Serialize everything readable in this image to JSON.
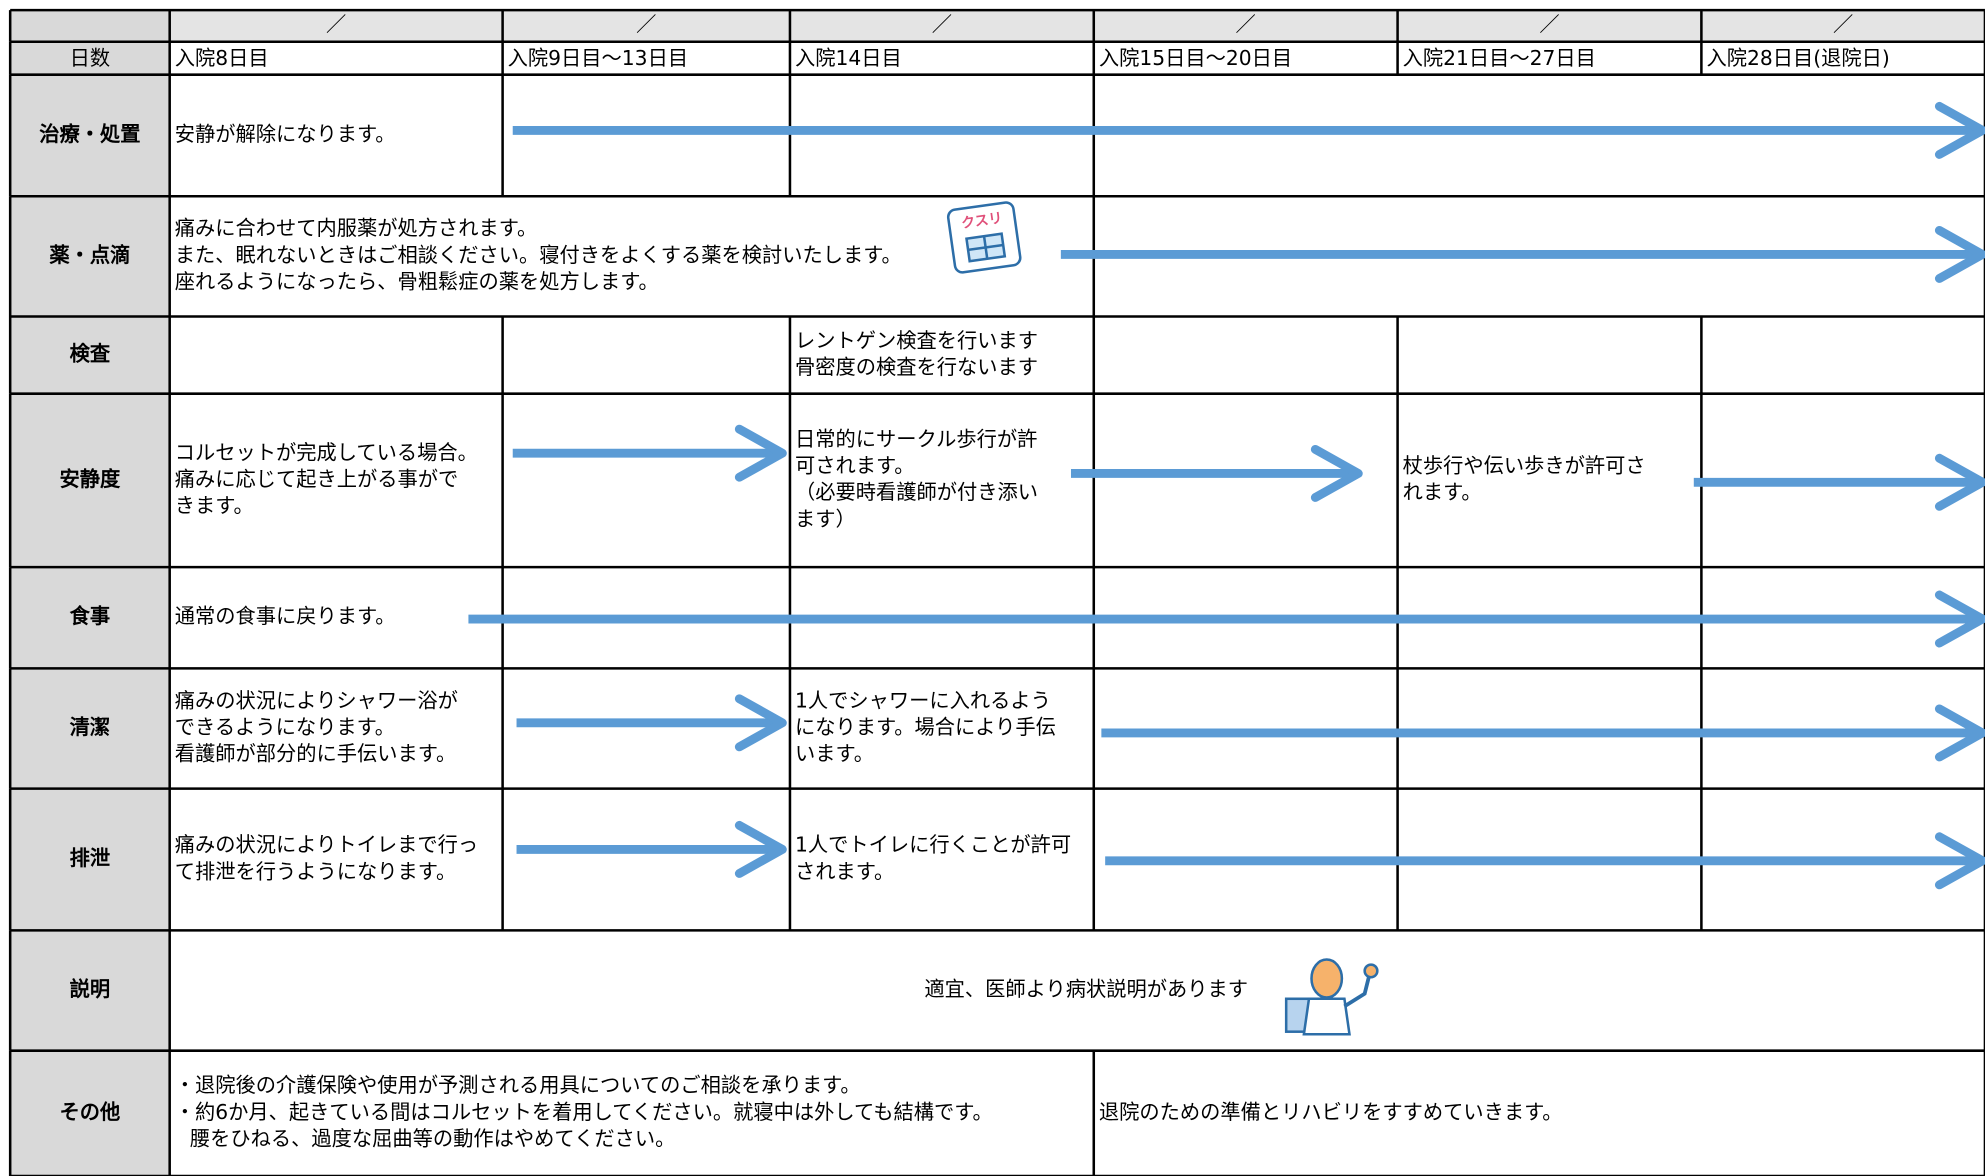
{
  "date_marks": [
    "／",
    "／",
    "／",
    "／",
    "／",
    "／"
  ],
  "day_label": "日数",
  "days": [
    "入院8日目",
    "入院9日目～13日目",
    "入院14日目",
    "入院15日目～20日目",
    "入院21日目～27日目",
    "入院28日目(退院日)"
  ],
  "rows": [
    {
      "label": "治療・処置",
      "cells": [
        [
          "安静が解除になります。"
        ]
      ]
    },
    {
      "label": "薬・点滴",
      "cells": [
        [
          "痛みに合わせて内服薬が処方されます。",
          "また、眠れないときはご相談ください。寝付きをよくする薬を検討いたします。",
          "座れるようになったら、骨粗鬆症の薬を処方します。"
        ]
      ]
    },
    {
      "label": "検査",
      "cells": [
        [
          "レントゲン検査を行います",
          "骨密度の検査を行ないます"
        ]
      ]
    },
    {
      "label": "安静度",
      "cells": [
        [
          "コルセットが完成している場合。",
          "痛みに応じて起き上がる事がで",
          "きます。"
        ],
        [
          "日常的にサークル歩行が許",
          "可されます。",
          "（必要時看護師が付き添い",
          "ます）"
        ],
        [
          "杖歩行や伝い歩きが許可さ",
          "れます。"
        ]
      ]
    },
    {
      "label": "食事",
      "cells": [
        [
          "通常の食事に戻ります。"
        ]
      ]
    },
    {
      "label": "清潔",
      "cells": [
        [
          "痛みの状況によりシャワー浴が",
          "できるようになります。",
          "看護師が部分的に手伝います。"
        ],
        [
          "1人でシャワーに入れるよう",
          "になります。場合により手伝",
          "います。"
        ]
      ]
    },
    {
      "label": "排泄",
      "cells": [
        [
          "痛みの状況によりトイレまで行っ",
          "て排泄を行うようになります。"
        ],
        [
          "1人でトイレに行くことが許可",
          "されます。"
        ]
      ]
    },
    {
      "label": "説明",
      "cells": [
        [
          "適宜、医師より病状説明があります"
        ]
      ]
    },
    {
      "label": "その他",
      "cells": [
        [
          "・退院後の介護保険や使用が予測される用具についてのご相談を承ります。",
          "・約6か月、起きている間はコルセットを着用してください。就寝中は外しても結構です。",
          "腰をひねる、過度な屈曲等の動作はやめてください。"
        ],
        [
          "退院のための準備とリハビリをすすめていきます。"
        ]
      ]
    }
  ],
  "medicine_icon_label": "クスリ"
}
